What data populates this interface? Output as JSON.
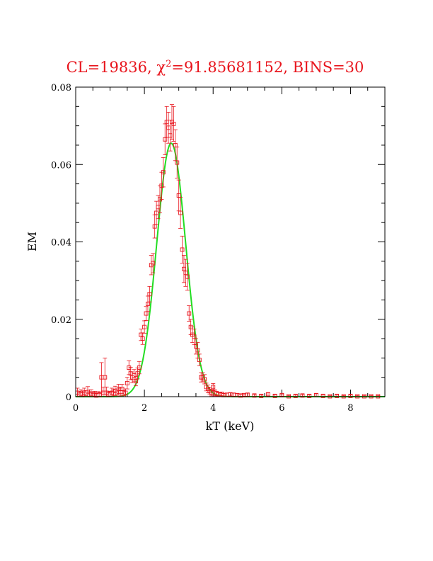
{
  "chart_data": {
    "type": "scatter",
    "title_prefix": "CL=19836, ",
    "title_chi": "χ",
    "title_sup": "2",
    "title_suffix": "=91.85681152, BINS=30",
    "xlabel": "kT (keV)",
    "ylabel": "EM",
    "xlim": [
      0,
      9
    ],
    "ylim": [
      0,
      0.08
    ],
    "x_ticks": [
      0,
      2,
      4,
      6,
      8
    ],
    "y_ticks": [
      0,
      0.02,
      0.04,
      0.06,
      0.08
    ],
    "x_tick_labels": [
      "0",
      "2",
      "4",
      "6",
      "8"
    ],
    "y_tick_labels": [
      "0",
      "0.02",
      "0.04",
      "0.06",
      "0.08"
    ],
    "colors": {
      "title": "#e8141c",
      "points": "#e8141c",
      "fit": "#22dd22",
      "axes": "#000000"
    },
    "fit_curve": {
      "type": "gaussian",
      "amplitude": 0.0655,
      "center": 2.78,
      "sigma": 0.42
    },
    "series": [
      {
        "marker": "square",
        "x": [
          0.05,
          0.1,
          0.15,
          0.2,
          0.25,
          0.3,
          0.35,
          0.4,
          0.45,
          0.5,
          0.55,
          0.6,
          0.65,
          0.7,
          0.75,
          0.8,
          0.85,
          0.9,
          0.95,
          1.0,
          1.05,
          1.1,
          1.15,
          1.2,
          1.25,
          1.3,
          1.35,
          1.4,
          1.45,
          1.5,
          1.55,
          1.6,
          1.65,
          1.7,
          1.75,
          1.8,
          1.85,
          1.9,
          1.95,
          2.0,
          2.05,
          2.1,
          2.15,
          2.2,
          2.25,
          2.3,
          2.35,
          2.4,
          2.45,
          2.5,
          2.55,
          2.6,
          2.65,
          2.7,
          2.75,
          2.8,
          2.85,
          2.9,
          2.95,
          3.0,
          3.05,
          3.1,
          3.15,
          3.2,
          3.25,
          3.3,
          3.35,
          3.4,
          3.45,
          3.5,
          3.55,
          3.6,
          3.65,
          3.7,
          3.75,
          3.8,
          3.85,
          3.9,
          3.95,
          4.0,
          4.05,
          4.1,
          4.15,
          4.2,
          4.25,
          4.3,
          4.4,
          4.5,
          4.6,
          4.7,
          4.8,
          4.9,
          5.0,
          5.2,
          5.4,
          5.6,
          5.8,
          6.0,
          6.2,
          6.4,
          6.6,
          6.8,
          7.0,
          7.2,
          7.4,
          7.6,
          7.8,
          8.0,
          8.2,
          8.4,
          8.6,
          8.8
        ],
        "y": [
          0.001,
          0.0005,
          0.0008,
          0.0006,
          0.001,
          0.0007,
          0.0012,
          0.0005,
          0.0008,
          0.0004,
          0.0006,
          0.0003,
          0.0005,
          0.0004,
          0.005,
          0.001,
          0.005,
          0.001,
          0.0006,
          0.0005,
          0.001,
          0.0008,
          0.0015,
          0.001,
          0.002,
          0.0012,
          0.002,
          0.0008,
          0.001,
          0.0035,
          0.0075,
          0.006,
          0.005,
          0.0055,
          0.004,
          0.006,
          0.0075,
          0.016,
          0.015,
          0.018,
          0.0215,
          0.024,
          0.0265,
          0.034,
          0.0345,
          0.044,
          0.0475,
          0.049,
          0.051,
          0.0545,
          0.058,
          0.0665,
          0.071,
          0.0695,
          0.0675,
          0.071,
          0.0705,
          0.065,
          0.0605,
          0.052,
          0.0475,
          0.038,
          0.033,
          0.032,
          0.031,
          0.0215,
          0.018,
          0.016,
          0.0155,
          0.013,
          0.012,
          0.0095,
          0.005,
          0.005,
          0.0045,
          0.0025,
          0.002,
          0.0015,
          0.001,
          0.0025,
          0.001,
          0.0008,
          0.0006,
          0.0005,
          0.0007,
          0.0004,
          0.0005,
          0.0006,
          0.0005,
          0.0004,
          0.0003,
          0.0004,
          0.0005,
          0.0003,
          0.0002,
          0.0006,
          0.0002,
          0.0004,
          0.0001,
          0.0002,
          0.0003,
          0.0002,
          0.0004,
          0.0002,
          0.0001,
          0.0002,
          0.0001,
          0.0002,
          0.0001,
          0.0001,
          0.0001,
          0.0001
        ],
        "err": [
          0.0012,
          0.0009,
          0.001,
          0.0009,
          0.0012,
          0.0009,
          0.0014,
          0.0008,
          0.001,
          0.0007,
          0.0008,
          0.0006,
          0.0008,
          0.0007,
          0.0038,
          0.0015,
          0.005,
          0.0015,
          0.0008,
          0.0008,
          0.0012,
          0.001,
          0.0012,
          0.001,
          0.0012,
          0.001,
          0.0012,
          0.0008,
          0.001,
          0.0015,
          0.0018,
          0.0016,
          0.0014,
          0.0015,
          0.0012,
          0.0014,
          0.0016,
          0.0015,
          0.0015,
          0.0016,
          0.0018,
          0.002,
          0.002,
          0.0025,
          0.0025,
          0.003,
          0.003,
          0.003,
          0.0035,
          0.0035,
          0.0038,
          0.004,
          0.004,
          0.004,
          0.004,
          0.0045,
          0.0045,
          0.004,
          0.004,
          0.004,
          0.004,
          0.0035,
          0.0035,
          0.0035,
          0.0035,
          0.002,
          0.002,
          0.002,
          0.002,
          0.002,
          0.002,
          0.0015,
          0.0012,
          0.0012,
          0.0012,
          0.001,
          0.001,
          0.0008,
          0.0008,
          0.0009,
          0.0008,
          0.0006,
          0.0005,
          0.0005,
          0.0005,
          0.0004,
          0.0004,
          0.0004,
          0.0004,
          0.0004,
          0.0003,
          0.0003,
          0.0004,
          0.0003,
          0.0003,
          0.0004,
          0.0003,
          0.0003,
          0.0002,
          0.0003,
          0.0003,
          0.0003,
          0.0004,
          0.0003,
          0.0002,
          0.0003,
          0.0002,
          0.0003,
          0.0002,
          0.0002,
          0.0002,
          0.0002
        ]
      }
    ]
  }
}
